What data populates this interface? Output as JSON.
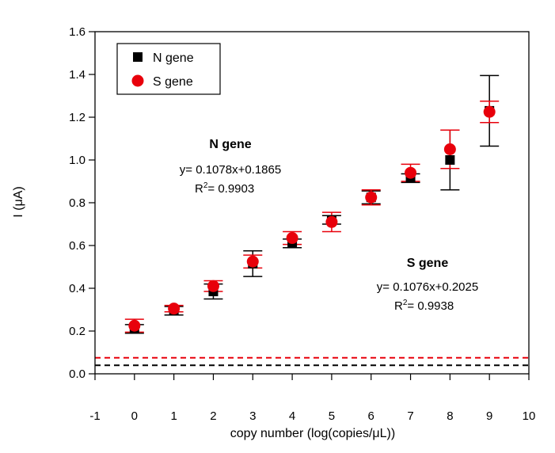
{
  "chart_data": {
    "type": "scatter",
    "title": "",
    "xlabel": "copy number (log(copies/μL))",
    "ylabel": "I (μA)",
    "xlim": [
      -1,
      10
    ],
    "ylim": [
      0.0,
      1.6
    ],
    "x_ticks": [
      "-1",
      "0",
      "1",
      "2",
      "3",
      "4",
      "5",
      "6",
      "7",
      "8",
      "9",
      "10"
    ],
    "y_ticks": [
      "0.0",
      "0.2",
      "0.4",
      "0.6",
      "0.8",
      "1.0",
      "1.2",
      "1.4",
      "1.6"
    ],
    "legend_position": "top-left",
    "series": [
      {
        "name": "N gene",
        "marker": "square",
        "color": "#000000",
        "x": [
          0,
          1,
          2,
          3,
          4,
          5,
          6,
          7,
          8,
          9
        ],
        "y": [
          0.21,
          0.295,
          0.385,
          0.515,
          0.61,
          0.72,
          0.825,
          0.915,
          1.0,
          1.23
        ],
        "error": [
          0.02,
          0.02,
          0.035,
          0.06,
          0.02,
          0.02,
          0.03,
          0.02,
          0.14,
          0.165
        ],
        "blank": 0.04,
        "equation_title": "N gene",
        "equation": "y= 0.1078x+0.1865",
        "r2_value": "= 0.9903"
      },
      {
        "name": "S gene",
        "marker": "circle",
        "color": "#e8000b",
        "x": [
          0,
          1,
          2,
          3,
          4,
          5,
          6,
          7,
          8,
          9
        ],
        "y": [
          0.225,
          0.305,
          0.41,
          0.525,
          0.635,
          0.71,
          0.825,
          0.94,
          1.05,
          1.225
        ],
        "error": [
          0.03,
          0.015,
          0.025,
          0.03,
          0.03,
          0.045,
          0.035,
          0.04,
          0.09,
          0.05
        ],
        "blank": 0.075,
        "equation_title": "S gene",
        "equation": "y= 0.1076x+0.2025",
        "r2_value": "= 0.9938"
      }
    ],
    "r2_symbol": "R",
    "r2_exponent": "2"
  }
}
